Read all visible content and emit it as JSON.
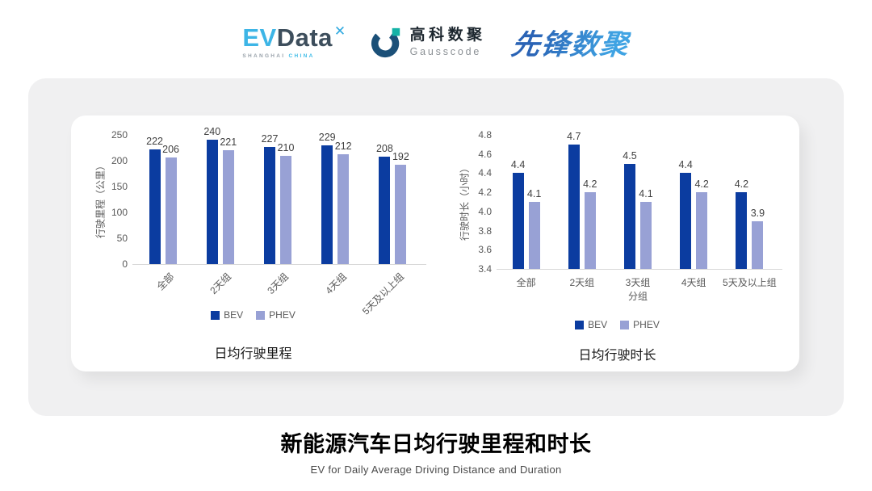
{
  "header": {
    "evdata": {
      "part_ev": "EV",
      "part_data": "Data",
      "mark_glyph": "✕",
      "sub_shanghai": "SHANGHAI",
      "sub_china": "CHINA"
    },
    "gausscode": {
      "cn": "高科数聚",
      "en": "Gausscode"
    },
    "pioneer": {
      "text": "先锋数聚"
    }
  },
  "colors": {
    "bev": "#0b3ca0",
    "phev": "#98a1d5",
    "series": [
      "#0b3ca0",
      "#98a1d5"
    ],
    "panel_bg": "#f0f0f1",
    "axis_text": "#595959",
    "value_label": "#404040",
    "evdata_blue": "#3db5e6",
    "evdata_slate": "#3d4e5c",
    "gausscode_blue": "#1b5078",
    "gausscode_teal": "#14b2a6",
    "pioneer_blue": "#2e7cc8"
  },
  "chart_data": [
    {
      "type": "bar",
      "title": "日均行驶里程",
      "ylabel": "行驶里程（公里）",
      "xlabel": "",
      "categories": [
        "全部",
        "2天组",
        "3天组",
        "4天组",
        "5天及以上组"
      ],
      "series": [
        {
          "name": "BEV",
          "values": [
            222,
            240,
            227,
            229,
            208
          ]
        },
        {
          "name": "PHEV",
          "values": [
            206,
            221,
            210,
            212,
            192
          ]
        }
      ],
      "ylim": [
        0,
        250
      ],
      "yticks": [
        0,
        50,
        100,
        150,
        200,
        250
      ],
      "ytick_labels": [
        "0",
        "50",
        "100",
        "150",
        "200",
        "250"
      ],
      "grid": false,
      "legend_position": "bottom",
      "x_tick_rotation": -45,
      "value_labels_shown": true
    },
    {
      "type": "bar",
      "title": "日均行驶时长",
      "ylabel": "行驶时长（小时）",
      "xlabel": "分组",
      "categories": [
        "全部",
        "2天组",
        "3天组",
        "4天组",
        "5天及以上组"
      ],
      "series": [
        {
          "name": "BEV",
          "values": [
            4.4,
            4.7,
            4.5,
            4.4,
            4.2
          ]
        },
        {
          "name": "PHEV",
          "values": [
            4.1,
            4.2,
            4.1,
            4.2,
            3.9
          ]
        }
      ],
      "ylim": [
        3.4,
        4.8
      ],
      "yticks": [
        3.4,
        3.6,
        3.8,
        4.0,
        4.2,
        4.4,
        4.6,
        4.8
      ],
      "ytick_labels": [
        "3.4",
        "3.6",
        "3.8",
        "4.0",
        "4.2",
        "4.4",
        "4.6",
        "4.8"
      ],
      "grid": false,
      "legend_position": "bottom",
      "x_tick_rotation": 0,
      "value_labels_shown": true
    }
  ],
  "footer": {
    "title": "新能源汽车日均行驶里程和时长",
    "subtitle": "EV for Daily Average Driving Distance and Duration"
  }
}
